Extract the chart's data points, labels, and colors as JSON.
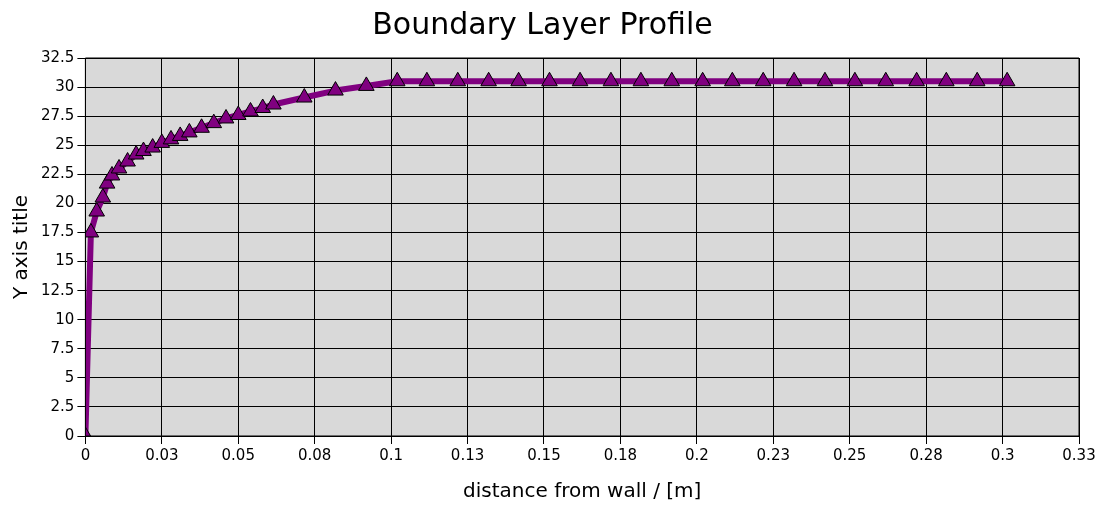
{
  "chart_data": {
    "type": "line",
    "title": "Boundary Layer Profile",
    "xlabel": "distance from wall / [m]",
    "ylabel": "Y axis title",
    "x": [
      0,
      0.0018,
      0.0037,
      0.0057,
      0.0071,
      0.0087,
      0.011,
      0.0138,
      0.0166,
      0.019,
      0.022,
      0.025,
      0.028,
      0.031,
      0.034,
      0.038,
      0.042,
      0.046,
      0.05,
      0.054,
      0.058,
      0.0615,
      0.0716,
      0.0818,
      0.0919,
      0.102,
      0.1117,
      0.1218,
      0.1319,
      0.1417,
      0.1518,
      0.1618,
      0.1719,
      0.1817,
      0.1918,
      0.2019,
      0.2116,
      0.2217,
      0.2318,
      0.2419,
      0.2517,
      0.2618,
      0.2719,
      0.2816,
      0.2917,
      0.3015
    ],
    "series": [
      {
        "color": "#800080",
        "values": [
          0,
          17.5,
          19.3,
          20.5,
          21.7,
          22.4,
          23.0,
          23.6,
          24.2,
          24.5,
          24.8,
          25.2,
          25.5,
          25.8,
          26.1,
          26.5,
          26.9,
          27.3,
          27.6,
          27.9,
          28.2,
          28.5,
          29.1,
          29.7,
          30.1,
          30.5,
          30.5,
          30.5,
          30.5,
          30.5,
          30.5,
          30.5,
          30.5,
          30.5,
          30.5,
          30.5,
          30.5,
          30.5,
          30.5,
          30.5,
          30.5,
          30.5,
          30.5,
          30.5,
          30.5,
          30.5
        ]
      }
    ],
    "xlim": [
      0,
      0.325
    ],
    "xticks": [
      0,
      {
        "value": 0.025,
        "label": "0.03"
      },
      0.05,
      {
        "value": 0.075,
        "label": "0.08"
      },
      0.1,
      {
        "value": 0.125,
        "label": "0.13"
      },
      0.15,
      {
        "value": 0.175,
        "label": "0.18"
      },
      0.2,
      {
        "value": 0.225,
        "label": "0.23"
      },
      0.25,
      {
        "value": 0.275,
        "label": "0.28"
      },
      0.3,
      {
        "value": 0.325,
        "label": "0.33"
      }
    ],
    "ylim": [
      0,
      32.5
    ],
    "yticks": [
      0,
      2.5,
      5,
      7.5,
      10,
      12.5,
      15,
      17.5,
      20,
      22.5,
      25,
      27.5,
      30,
      32.5
    ],
    "grid": true,
    "legend": false,
    "marker": "triangle",
    "line_style": "solid"
  }
}
